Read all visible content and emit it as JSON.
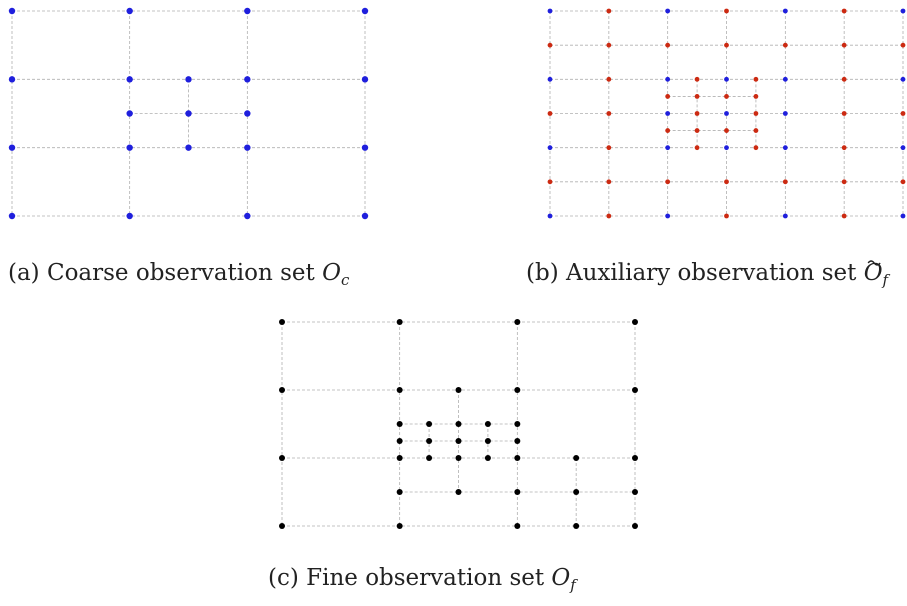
{
  "colors": {
    "coarse": "#1f1fdd",
    "auxiliary_new": "#cc2a12",
    "fine": "#000000",
    "grid": "#b0b0b0"
  },
  "panels": [
    {
      "id": "a",
      "caption_prefix": "(a) Coarse observation set ",
      "symbol": "O",
      "subscript": "c",
      "tilde": false,
      "columns": [
        0,
        1,
        1.5,
        2,
        3
      ],
      "rows": [
        0,
        1,
        1.5,
        2,
        3
      ],
      "points": [
        [
          0,
          0
        ],
        [
          1,
          0
        ],
        [
          2,
          0
        ],
        [
          3,
          0
        ],
        [
          0,
          1
        ],
        [
          1,
          1
        ],
        [
          1.5,
          1
        ],
        [
          2,
          1
        ],
        [
          3,
          1
        ],
        [
          1,
          1.5
        ],
        [
          1.5,
          1.5
        ],
        [
          2,
          1.5
        ],
        [
          0,
          2
        ],
        [
          1,
          2
        ],
        [
          1.5,
          2
        ],
        [
          2,
          2
        ],
        [
          3,
          2
        ],
        [
          0,
          3
        ],
        [
          1,
          3
        ],
        [
          2,
          3
        ],
        [
          3,
          3
        ]
      ]
    },
    {
      "id": "b",
      "caption_prefix": "(b) Auxiliary observation set ",
      "symbol": "O",
      "subscript": "f",
      "tilde": true,
      "columns": [
        0,
        0.5,
        1,
        1.25,
        1.5,
        1.75,
        2,
        2.5,
        3
      ],
      "rows": [
        0,
        0.5,
        1,
        1.25,
        1.5,
        1.75,
        2,
        2.5,
        3
      ],
      "coarse_points": [
        [
          0,
          0
        ],
        [
          1,
          0
        ],
        [
          2,
          0
        ],
        [
          3,
          0
        ],
        [
          0,
          1
        ],
        [
          1,
          1
        ],
        [
          1.5,
          1
        ],
        [
          2,
          1
        ],
        [
          3,
          1
        ],
        [
          1,
          1.5
        ],
        [
          1.5,
          1.5
        ],
        [
          2,
          1.5
        ],
        [
          0,
          2
        ],
        [
          1,
          2
        ],
        [
          1.5,
          2
        ],
        [
          2,
          2
        ],
        [
          3,
          2
        ],
        [
          0,
          3
        ],
        [
          1,
          3
        ],
        [
          2,
          3
        ],
        [
          3,
          3
        ]
      ],
      "new_points": [
        [
          0.5,
          0
        ],
        [
          1.5,
          0
        ],
        [
          2.5,
          0
        ],
        [
          0,
          0.5
        ],
        [
          0.5,
          0.5
        ],
        [
          1,
          0.5
        ],
        [
          1.5,
          0.5
        ],
        [
          2,
          0.5
        ],
        [
          2.5,
          0.5
        ],
        [
          3,
          0.5
        ],
        [
          0.5,
          1
        ],
        [
          2.5,
          1
        ],
        [
          1.25,
          1
        ],
        [
          1.75,
          1
        ],
        [
          1,
          1.25
        ],
        [
          1.25,
          1.25
        ],
        [
          1.5,
          1.25
        ],
        [
          1.75,
          1.25
        ],
        [
          0,
          1.5
        ],
        [
          0.5,
          1.5
        ],
        [
          1.25,
          1.5
        ],
        [
          1.75,
          1.5
        ],
        [
          2.5,
          1.5
        ],
        [
          3,
          1.5
        ],
        [
          1,
          1.75
        ],
        [
          1.25,
          1.75
        ],
        [
          1.5,
          1.75
        ],
        [
          1.75,
          1.75
        ],
        [
          1.25,
          2
        ],
        [
          1.75,
          2
        ],
        [
          0.5,
          2
        ],
        [
          2.5,
          2
        ],
        [
          0,
          2.5
        ],
        [
          0.5,
          2.5
        ],
        [
          1,
          2.5
        ],
        [
          1.5,
          2.5
        ],
        [
          2,
          2.5
        ],
        [
          2.5,
          2.5
        ],
        [
          3,
          2.5
        ],
        [
          0.5,
          3
        ],
        [
          1.5,
          3
        ],
        [
          2.5,
          3
        ]
      ]
    },
    {
      "id": "c",
      "caption_prefix": "(c) Fine observation set ",
      "symbol": "O",
      "subscript": "f",
      "tilde": false,
      "columns": [
        0,
        1,
        1.25,
        1.5,
        1.75,
        2,
        2.5,
        3
      ],
      "rows": [
        0,
        1,
        1.5,
        1.75,
        2,
        2.5,
        3
      ],
      "points": [
        [
          0,
          0
        ],
        [
          1,
          0
        ],
        [
          2,
          0
        ],
        [
          3,
          0
        ],
        [
          0,
          1
        ],
        [
          1,
          1
        ],
        [
          1.5,
          1
        ],
        [
          2,
          1
        ],
        [
          3,
          1
        ],
        [
          1,
          1.5
        ],
        [
          1.25,
          1.5
        ],
        [
          1.5,
          1.5
        ],
        [
          1.75,
          1.5
        ],
        [
          2,
          1.5
        ],
        [
          1,
          1.75
        ],
        [
          1.25,
          1.75
        ],
        [
          1.5,
          1.75
        ],
        [
          1.75,
          1.75
        ],
        [
          2,
          1.75
        ],
        [
          0,
          2
        ],
        [
          1,
          2
        ],
        [
          1.25,
          2
        ],
        [
          1.5,
          2
        ],
        [
          1.75,
          2
        ],
        [
          2,
          2
        ],
        [
          2.5,
          2
        ],
        [
          3,
          2
        ],
        [
          1,
          2.5
        ],
        [
          1.5,
          2.5
        ],
        [
          2,
          2.5
        ],
        [
          2.5,
          2.5
        ],
        [
          3,
          2.5
        ],
        [
          0,
          3
        ],
        [
          1,
          3
        ],
        [
          2,
          3
        ],
        [
          2.5,
          3
        ],
        [
          3,
          3
        ]
      ]
    }
  ]
}
